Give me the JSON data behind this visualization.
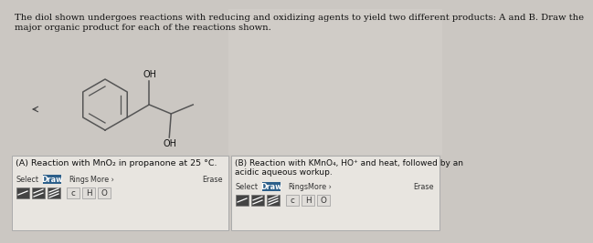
{
  "bg_color": "#cbc7c2",
  "white": "#ffffff",
  "title_text_line1": "The diol shown undergoes reactions with reducing and oxidizing agents to yield two different products: A and B. Draw the",
  "title_text_line2": "major organic product for each of the reactions shown.",
  "panel_A_label": "(A) Reaction with MnO₂ in propanone at 25 °C.",
  "panel_B_label_line1": "(B) Reaction with KMnO₄, HO⁺ and heat, followed by an",
  "panel_B_label_line2": "acidic aqueous workup.",
  "select_text": "Select",
  "draw_text": "Draw",
  "rings_text": "Rings",
  "more_text": "More ›",
  "erase_text": "Erase",
  "btn_draw_color": "#2c5f8a",
  "btn_text_color": "#ffffff",
  "box_bg": "#edeae6",
  "panel_bg": "#e8e5e0",
  "font_size_title": 7.2,
  "font_size_panel": 6.8,
  "font_size_toolbar": 5.8,
  "mol_color": "#555555",
  "mol_lw": 1.1
}
